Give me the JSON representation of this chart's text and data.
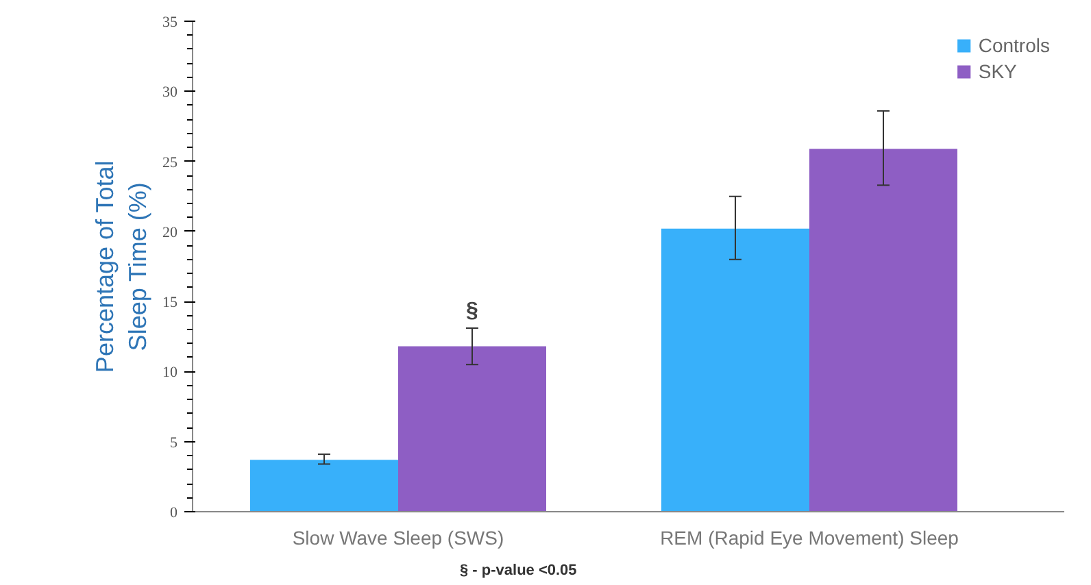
{
  "chart_data": {
    "type": "bar",
    "ylabel": "Percentage of Total\nSleep Time (%)",
    "categories": [
      "Slow Wave Sleep (SWS)",
      "REM (Rapid Eye Movement) Sleep"
    ],
    "series": [
      {
        "name": "Controls",
        "color": "#38b0fa",
        "values": [
          3.7,
          20.2
        ],
        "errors": [
          [
            3.4,
            4.1
          ],
          [
            18.0,
            22.5
          ]
        ]
      },
      {
        "name": "SKY",
        "color": "#8e5ec4",
        "values": [
          11.8,
          25.9
        ],
        "errors": [
          [
            10.5,
            13.1
          ],
          [
            23.3,
            28.6
          ]
        ]
      }
    ],
    "ylim": [
      0,
      35
    ],
    "yticks": [
      0,
      5,
      10,
      15,
      20,
      25,
      30,
      35
    ],
    "grid": false,
    "legend": "top right",
    "annotations": [
      "§",
      "§ - p-value <0.05"
    ]
  }
}
